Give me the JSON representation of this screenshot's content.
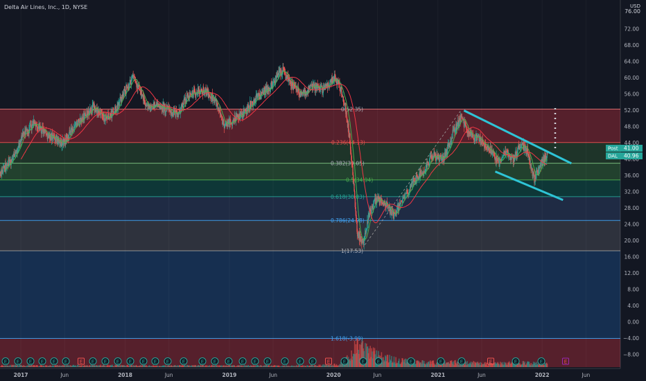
{
  "header": {
    "title": "Delta Air Lines, Inc., 1D, NYSE"
  },
  "price_scale": {
    "unit": "USD",
    "top_label": "76.00"
  },
  "badges": {
    "post": {
      "label": "Post",
      "value": "41.00",
      "color": "#26a69a"
    },
    "dal": {
      "label": "DAL",
      "value": "40.96",
      "color": "#26a69a"
    }
  },
  "colors": {
    "background": "#131722",
    "candle_up": "#26a69a",
    "candle_down": "#ef5350",
    "channel": "#2ec4d6",
    "ma_fast": "#4caf50",
    "ma_slow": "#f23645",
    "axis_text": "#b2b5be",
    "fib_text_green": "#4caf50",
    "fib_text_blue": "#42a5f5"
  },
  "chart_data": {
    "type": "candlestick",
    "symbol": "DAL",
    "exchange": "NYSE",
    "interval": "1D",
    "ylim": [
      -10,
      76
    ],
    "y_ticks": [
      72,
      68,
      64,
      60,
      56,
      52,
      48,
      44,
      40,
      36,
      32,
      28,
      24,
      20,
      16,
      12,
      8,
      4,
      0,
      -4,
      -8
    ],
    "x_ticks": [
      "2017",
      "Jun",
      "2018",
      "Jun",
      "2019",
      "Jun",
      "2020",
      "Jun",
      "2021",
      "Jun",
      "2022",
      "Jun"
    ],
    "x_tick_years": [
      2017.0,
      2017.42,
      2018.0,
      2018.42,
      2019.0,
      2019.42,
      2020.0,
      2020.42,
      2021.0,
      2021.42,
      2022.0,
      2022.42
    ],
    "price_path": [
      [
        2016.8,
        37
      ],
      [
        2016.92,
        40
      ],
      [
        2017.0,
        45
      ],
      [
        2017.12,
        49
      ],
      [
        2017.25,
        46
      ],
      [
        2017.4,
        44
      ],
      [
        2017.55,
        49
      ],
      [
        2017.7,
        53
      ],
      [
        2017.8,
        50
      ],
      [
        2017.9,
        52
      ],
      [
        2018.0,
        57
      ],
      [
        2018.08,
        60
      ],
      [
        2018.2,
        53
      ],
      [
        2018.35,
        53
      ],
      [
        2018.5,
        51
      ],
      [
        2018.6,
        56
      ],
      [
        2018.75,
        57
      ],
      [
        2018.85,
        55
      ],
      [
        2018.95,
        48
      ],
      [
        2019.05,
        50
      ],
      [
        2019.15,
        52
      ],
      [
        2019.25,
        55
      ],
      [
        2019.4,
        58
      ],
      [
        2019.5,
        62
      ],
      [
        2019.6,
        58
      ],
      [
        2019.7,
        56
      ],
      [
        2019.8,
        58
      ],
      [
        2019.9,
        57
      ],
      [
        2020.0,
        60
      ],
      [
        2020.05,
        58
      ],
      [
        2020.1,
        54
      ],
      [
        2020.15,
        45
      ],
      [
        2020.2,
        30
      ],
      [
        2020.22,
        22
      ],
      [
        2020.28,
        19.5
      ],
      [
        2020.33,
        26
      ],
      [
        2020.4,
        30
      ],
      [
        2020.5,
        29
      ],
      [
        2020.58,
        26
      ],
      [
        2020.65,
        30
      ],
      [
        2020.75,
        34
      ],
      [
        2020.85,
        37
      ],
      [
        2020.95,
        41
      ],
      [
        2021.05,
        40
      ],
      [
        2021.15,
        47
      ],
      [
        2021.22,
        50
      ],
      [
        2021.28,
        47
      ],
      [
        2021.38,
        45
      ],
      [
        2021.48,
        43
      ],
      [
        2021.58,
        39
      ],
      [
        2021.65,
        42
      ],
      [
        2021.72,
        40
      ],
      [
        2021.8,
        44
      ],
      [
        2021.85,
        42
      ],
      [
        2021.92,
        35
      ],
      [
        2021.97,
        38
      ],
      [
        2022.03,
        41
      ]
    ],
    "volume_profile": [
      [
        2016.8,
        1.5
      ],
      [
        2017.3,
        1.3
      ],
      [
        2017.8,
        1.6
      ],
      [
        2018.3,
        1.2
      ],
      [
        2018.8,
        1.5
      ],
      [
        2019.3,
        1.3
      ],
      [
        2019.8,
        1.4
      ],
      [
        2020.05,
        2.5
      ],
      [
        2020.15,
        9
      ],
      [
        2020.22,
        20
      ],
      [
        2020.3,
        16
      ],
      [
        2020.45,
        10
      ],
      [
        2020.6,
        6
      ],
      [
        2020.8,
        5
      ],
      [
        2021.0,
        4
      ],
      [
        2021.2,
        4.5
      ],
      [
        2021.5,
        3
      ],
      [
        2021.8,
        4
      ],
      [
        2022.03,
        3
      ]
    ],
    "fibonacci": {
      "high": 52.35,
      "low": 17.53,
      "levels": [
        {
          "ratio": 0,
          "price": 52.35,
          "label": "0(52.35)",
          "fill": "rgba(242,54,69,0.30)",
          "line": "#e57373",
          "text_color": "#b2b5be"
        },
        {
          "ratio": 0.236,
          "price": 44.13,
          "label": "0.236(44.13)",
          "fill": "rgba(60,130,60,0.28)",
          "line": "#ef5350",
          "text_color": "#ef5350"
        },
        {
          "ratio": 0.382,
          "price": 39.05,
          "label": "0.382(39.05)",
          "fill": "rgba(76,175,80,0.28)",
          "line": "#81c784",
          "text_color": "#b2b5be"
        },
        {
          "ratio": 0.5,
          "price": 34.94,
          "label": "0.5(34.94)",
          "fill": "rgba(0,150,120,0.25)",
          "line": "#4caf50",
          "text_color": "#4caf50"
        },
        {
          "ratio": 0.618,
          "price": 30.83,
          "label": "0.618(30.83)",
          "fill": "rgba(60,90,150,0.30)",
          "line": "#26a69a",
          "text_color": "#26a69a"
        },
        {
          "ratio": 0.786,
          "price": 24.98,
          "label": "0.786(24.98)",
          "fill": "rgba(120,123,134,0.28)",
          "line": "#42a5f5",
          "text_color": "#42a5f5"
        },
        {
          "ratio": 1,
          "price": 17.53,
          "label": "1(17.53)",
          "fill": "rgba(33,110,200,0.28)",
          "line": "#9e9e9e",
          "text_color": "#b2b5be"
        },
        {
          "ratio": 1.618,
          "price": -3.99,
          "label": "1.618(-3.99)",
          "fill": "rgba(242,54,69,0.30)",
          "line": "#42a5f5",
          "text_color": "#42a5f5"
        }
      ]
    },
    "channel_lines": [
      {
        "x": [
          2021.25,
          2022.28
        ],
        "y": [
          52,
          39
        ]
      },
      {
        "x": [
          2021.55,
          2022.2
        ],
        "y": [
          37,
          30
        ]
      }
    ]
  }
}
